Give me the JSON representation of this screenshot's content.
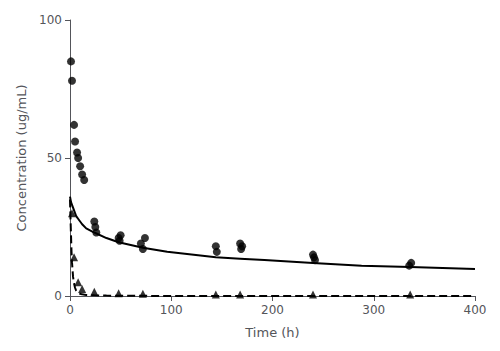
{
  "chart_data": {
    "type": "line",
    "xlabel": "Time (h)",
    "ylabel": "Concentration (ug/mL)",
    "xlim": [
      0,
      400
    ],
    "ylim": [
      0,
      100
    ],
    "xticks": [
      0,
      100,
      200,
      300,
      400
    ],
    "yticks": [
      0,
      50,
      100
    ],
    "grid": false,
    "series": [
      {
        "type": "line",
        "line_style": "solid",
        "color": "#000000",
        "x": [
          0,
          0.5,
          1,
          2,
          3,
          4,
          5,
          6,
          7,
          8,
          10,
          12,
          16,
          24,
          36,
          48,
          60,
          72,
          96,
          120,
          144,
          168,
          192,
          216,
          240,
          288,
          336,
          384,
          400
        ],
        "values": [
          36,
          35,
          34,
          33,
          32,
          31,
          30,
          29,
          28.5,
          28,
          27,
          26,
          24.5,
          23,
          21,
          19.5,
          18.5,
          17.5,
          16,
          15,
          14,
          13.5,
          13,
          12.5,
          12,
          11,
          10.5,
          10,
          9.8
        ]
      },
      {
        "type": "line",
        "line_style": "dashed",
        "color": "#000000",
        "x": [
          0,
          0.5,
          1,
          1.5,
          2,
          3,
          4,
          5,
          6,
          7,
          8,
          10,
          12,
          16,
          24,
          36,
          48,
          60,
          72,
          96,
          120,
          144,
          168,
          240,
          336,
          400
        ],
        "values": [
          35,
          28,
          22,
          16,
          12,
          7,
          4.5,
          3,
          2,
          1.5,
          1.2,
          0.8,
          0.6,
          0.4,
          0.25,
          0.15,
          0.1,
          0.07,
          0.05,
          0.03,
          0.02,
          0.01,
          0.008,
          0.005,
          0.003,
          0.002
        ]
      },
      {
        "type": "scatter",
        "marker": "circle",
        "color": "#000000",
        "x": [
          1,
          2,
          4,
          5,
          7,
          8,
          10,
          12,
          14,
          24,
          25,
          26,
          48,
          49,
          50,
          70,
          72,
          74,
          144,
          145,
          168,
          169,
          170,
          240,
          241,
          242,
          335,
          337
        ],
        "values": [
          85,
          78,
          62,
          56,
          52,
          50,
          47,
          44,
          42,
          27,
          25,
          23,
          21,
          20,
          22,
          19,
          17,
          21,
          18,
          16,
          19,
          17,
          18,
          15,
          14,
          13,
          11,
          12
        ]
      },
      {
        "type": "scatter",
        "marker": "triangle",
        "color": "#000000",
        "x": [
          2,
          4,
          8,
          12,
          24,
          48,
          72,
          144,
          168,
          240,
          336
        ],
        "values": [
          30,
          14,
          5,
          2.5,
          1.5,
          1.0,
          0.8,
          0.5,
          0.5,
          0.5,
          0.5
        ]
      }
    ]
  }
}
